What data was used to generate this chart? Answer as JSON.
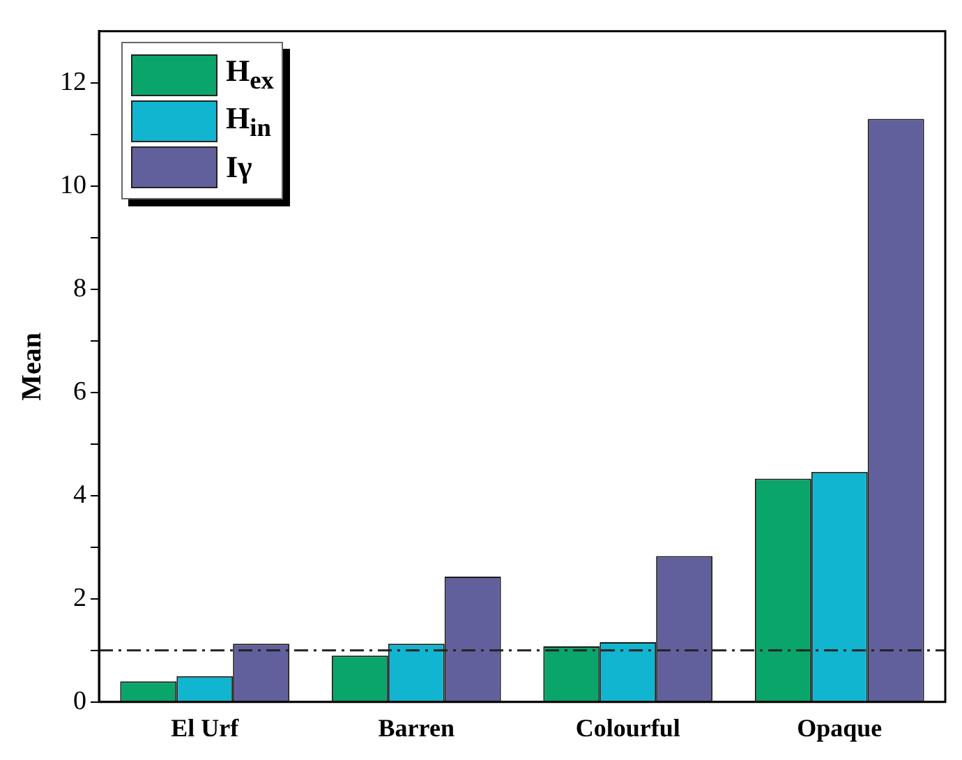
{
  "chart_data": {
    "type": "bar",
    "ylabel": "Mean",
    "categories": [
      "El Urf",
      "Barren",
      "Colourful",
      "Opaque"
    ],
    "series": [
      {
        "name": "H$_{ex}$",
        "color": "#0aa56a",
        "values": [
          0.4,
          0.9,
          1.08,
          4.33
        ]
      },
      {
        "name": "H$_{in}$",
        "color": "#12b5cf",
        "values": [
          0.5,
          1.13,
          1.16,
          4.46
        ]
      },
      {
        "name": "Iγ",
        "color": "#62609c",
        "values": [
          1.13,
          2.43,
          2.83,
          11.3
        ]
      }
    ],
    "ylim": [
      0,
      13
    ],
    "yticks": [
      0,
      {
        "value": 1,
        "label": null
      },
      2,
      {
        "value": 3,
        "label": null
      },
      4,
      {
        "value": 5,
        "label": null
      },
      6,
      {
        "value": 7,
        "label": null
      },
      8,
      {
        "value": 9,
        "label": null
      },
      10,
      {
        "value": 11,
        "label": null
      },
      12
    ],
    "ref_lines": [
      {
        "axis": "y",
        "value": 1,
        "label": null,
        "color": "#222222",
        "line_style": "dashed"
      }
    ],
    "legend": "top left",
    "grid": false
  }
}
